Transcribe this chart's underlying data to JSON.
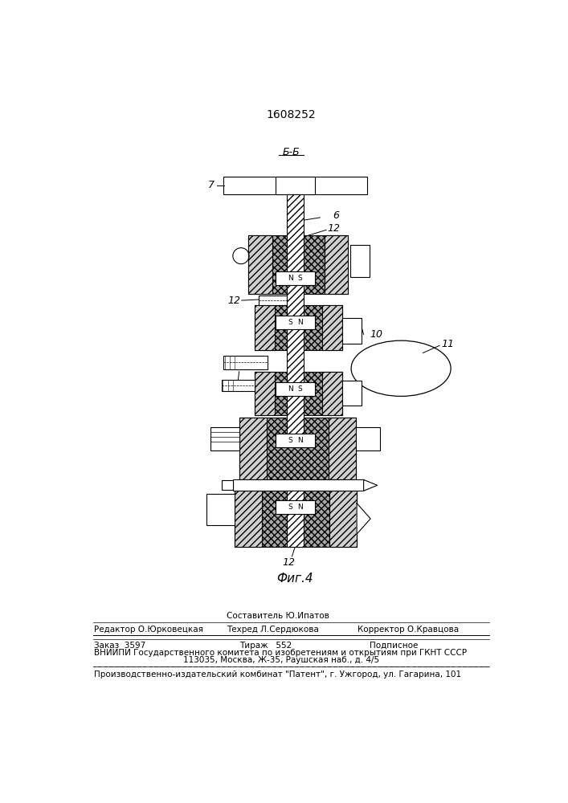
{
  "title": "1608252",
  "fig_label": "Фиг.4",
  "section_label": "Б-Б",
  "bg_color": "#ffffff",
  "lc": "#000000",
  "gray_cross": "#a8a8a8",
  "gray_diag": "#d0d0d0"
}
